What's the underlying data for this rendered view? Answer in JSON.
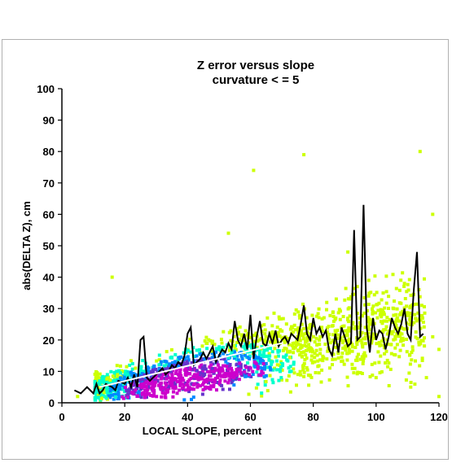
{
  "chart_data": {
    "type": "scatter",
    "title": "Z error versus slope",
    "subtitle": "curvature < = 5",
    "xlabel": "LOCAL SLOPE, percent",
    "ylabel": "abs(DELTA Z), cm",
    "xlim": [
      0,
      120
    ],
    "ylim": [
      0,
      100
    ],
    "xticks": [
      "0",
      "20",
      "40",
      "60",
      "80",
      "100",
      "120"
    ],
    "yticks": [
      "0",
      "10",
      "20",
      "30",
      "40",
      "50",
      "60",
      "70",
      "80",
      "90",
      "100"
    ],
    "grid": false,
    "legend": "none",
    "density_colors": [
      "#ccff00",
      "#00ffcc",
      "#0088ff",
      "#6633cc",
      "#cc00cc"
    ],
    "line_color": "#000000",
    "trend_color": "#ffffff",
    "density_core": [
      {
        "x": 22,
        "y": 3
      },
      {
        "x": 30,
        "y": 4
      },
      {
        "x": 38,
        "y": 5
      },
      {
        "x": 45,
        "y": 6
      },
      {
        "x": 52,
        "y": 8
      },
      {
        "x": 60,
        "y": 10
      }
    ],
    "outliers": [
      {
        "x": 16,
        "y": 40
      },
      {
        "x": 61,
        "y": 74
      },
      {
        "x": 53,
        "y": 54
      },
      {
        "x": 77,
        "y": 79
      },
      {
        "x": 114,
        "y": 80
      },
      {
        "x": 118,
        "y": 60
      },
      {
        "x": 109,
        "y": 38
      },
      {
        "x": 91,
        "y": 48
      },
      {
        "x": 94,
        "y": 37
      },
      {
        "x": 118,
        "y": 21
      },
      {
        "x": 120,
        "y": 17
      },
      {
        "x": 116,
        "y": 8
      },
      {
        "x": 120,
        "y": 2
      },
      {
        "x": 111,
        "y": 5
      },
      {
        "x": 100,
        "y": 8
      },
      {
        "x": 5,
        "y": 2
      }
    ],
    "mean_line": {
      "x": [
        4,
        6,
        8,
        10,
        11,
        12,
        13,
        14,
        16,
        17,
        18,
        20,
        21,
        22,
        23,
        24,
        25,
        26,
        27,
        28,
        30,
        31,
        32,
        33,
        34,
        35,
        36,
        37,
        38,
        39,
        40,
        41,
        42,
        43,
        44,
        45,
        46,
        48,
        49,
        50,
        51,
        52,
        53,
        54,
        55,
        56,
        57,
        58,
        59,
        60,
        61,
        62,
        63,
        64,
        65,
        66,
        67,
        68,
        69,
        70,
        71,
        72,
        73,
        74,
        75,
        76,
        77,
        78,
        79,
        80,
        81,
        82,
        83,
        84,
        85,
        86,
        87,
        88,
        89,
        90,
        91,
        92,
        93,
        94,
        95,
        96,
        97,
        98,
        99,
        100,
        101,
        102,
        103,
        104,
        105,
        106,
        107,
        108,
        109,
        110,
        111,
        112,
        113,
        114,
        115
      ],
      "y": [
        4,
        3,
        5,
        3,
        6,
        3,
        4,
        6,
        5,
        4,
        7,
        6,
        8,
        5,
        9,
        5,
        20,
        21,
        8,
        7,
        9,
        10,
        11,
        9,
        10,
        12,
        11,
        13,
        12,
        15,
        22,
        24,
        12,
        13,
        14,
        16,
        14,
        18,
        13,
        15,
        17,
        16,
        19,
        17,
        26,
        20,
        18,
        22,
        17,
        28,
        14,
        21,
        26,
        19,
        18,
        22,
        19,
        23,
        18,
        20,
        21,
        19,
        22,
        21,
        20,
        25,
        31,
        22,
        20,
        27,
        22,
        24,
        21,
        23,
        17,
        15,
        22,
        16,
        24,
        21,
        18,
        19,
        55,
        20,
        21,
        63,
        24,
        16,
        27,
        20,
        23,
        22,
        17,
        21,
        27,
        24,
        22,
        25,
        30,
        22,
        20,
        36,
        48,
        21,
        22
      ]
    },
    "trend_line": {
      "x": [
        12,
        70
      ],
      "y": [
        5,
        19
      ]
    }
  }
}
